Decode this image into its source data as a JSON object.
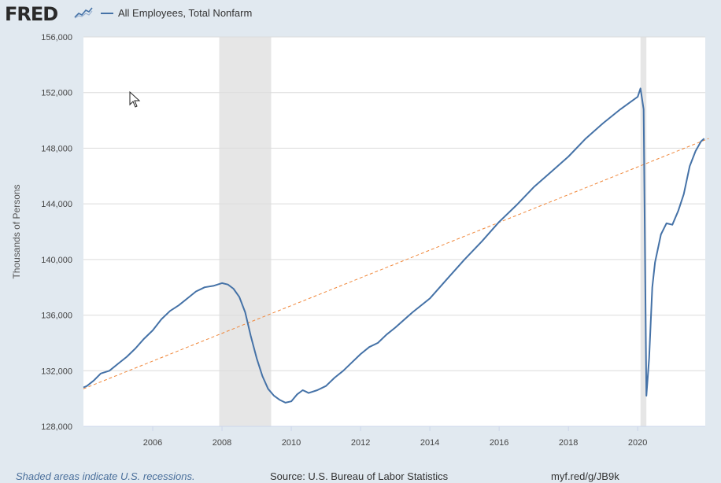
{
  "header": {
    "logo": "FRED",
    "legend_label": "All Employees, Total Nonfarm"
  },
  "footer": {
    "note": "Shaded areas indicate U.S. recessions.",
    "source": "Source: U.S. Bureau of Labor Statistics",
    "url": "myf.red/g/JB9k"
  },
  "colors": {
    "series": "#4572a7",
    "trend": "#f0873a",
    "recession": "#e6e6e6",
    "plot_bg": "#ffffff",
    "page_bg": "#e1e9f0"
  },
  "chart_data": {
    "type": "line",
    "title": "All Employees, Total Nonfarm",
    "xlabel": "",
    "ylabel": "Thousands of Persons",
    "xlim": [
      2004.0,
      2021.95
    ],
    "ylim": [
      128000,
      156000
    ],
    "x_ticks": [
      2006,
      2008,
      2010,
      2012,
      2014,
      2016,
      2018,
      2020
    ],
    "y_ticks": [
      128000,
      132000,
      136000,
      140000,
      144000,
      148000,
      152000,
      156000
    ],
    "recessions": [
      [
        2007.92,
        2009.42
      ],
      [
        2020.08,
        2020.25
      ]
    ],
    "series": [
      {
        "name": "All Employees, Total Nonfarm",
        "x": [
          2004.0,
          2004.1,
          2004.3,
          2004.5,
          2004.75,
          2005.0,
          2005.25,
          2005.5,
          2005.75,
          2006.0,
          2006.25,
          2006.5,
          2006.75,
          2007.0,
          2007.25,
          2007.5,
          2007.75,
          2008.0,
          2008.17,
          2008.33,
          2008.5,
          2008.67,
          2008.83,
          2009.0,
          2009.17,
          2009.33,
          2009.5,
          2009.67,
          2009.83,
          2010.0,
          2010.17,
          2010.33,
          2010.42,
          2010.5,
          2010.75,
          2011.0,
          2011.25,
          2011.5,
          2011.75,
          2012.0,
          2012.25,
          2012.5,
          2012.75,
          2013.0,
          2013.5,
          2014.0,
          2014.5,
          2015.0,
          2015.5,
          2016.0,
          2016.5,
          2017.0,
          2017.5,
          2018.0,
          2018.5,
          2019.0,
          2019.5,
          2020.0,
          2020.08,
          2020.17,
          2020.25,
          2020.33,
          2020.42,
          2020.5,
          2020.67,
          2020.83,
          2021.0,
          2021.17,
          2021.33,
          2021.5,
          2021.67,
          2021.83,
          2021.92
        ],
        "values": [
          130800,
          130900,
          131300,
          131800,
          132000,
          132500,
          133000,
          133600,
          134300,
          134900,
          135700,
          136300,
          136700,
          137200,
          137700,
          138000,
          138100,
          138300,
          138200,
          137900,
          137300,
          136200,
          134500,
          132900,
          131600,
          130700,
          130200,
          129900,
          129700,
          129800,
          130300,
          130600,
          130500,
          130400,
          130600,
          130900,
          131500,
          132000,
          132600,
          133200,
          133700,
          134000,
          134600,
          135100,
          136200,
          137200,
          138600,
          140000,
          141300,
          142700,
          143900,
          145200,
          146300,
          147400,
          148700,
          149800,
          150800,
          151700,
          152300,
          150800,
          130200,
          132900,
          138000,
          139800,
          141800,
          142600,
          142500,
          143500,
          144700,
          146700,
          147800,
          148500,
          148700
        ]
      },
      {
        "name": "Linear trend",
        "x": [
          2004.0,
          2022.05
        ],
        "values": [
          130700,
          148700
        ]
      }
    ]
  }
}
